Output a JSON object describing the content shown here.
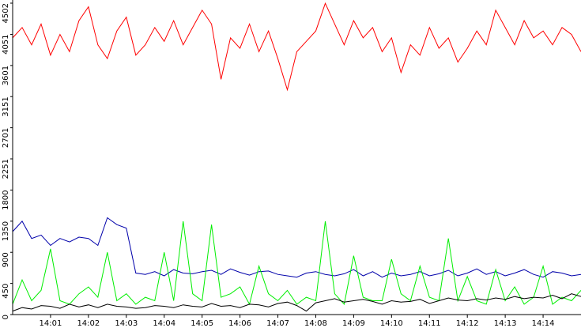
{
  "chart_data": {
    "type": "line",
    "x": [
      0,
      0.25,
      0.5,
      0.75,
      1,
      1.25,
      1.5,
      1.75,
      2,
      2.25,
      2.5,
      2.75,
      3,
      3.25,
      3.5,
      3.75,
      4,
      4.25,
      4.5,
      4.75,
      5,
      5.25,
      5.5,
      5.75,
      6,
      6.25,
      6.5,
      6.75,
      7,
      7.25,
      7.5,
      7.75,
      8,
      8.25,
      8.5,
      8.75,
      9,
      9.25,
      9.5,
      9.75,
      10,
      10.25,
      10.5,
      10.75,
      11,
      11.25,
      11.5,
      11.75,
      12,
      12.25,
      12.5,
      12.75,
      13,
      13.25,
      13.5,
      13.75,
      14,
      14.25,
      14.5,
      14.75,
      15
    ],
    "series": [
      {
        "color": "#ff0000",
        "values": [
          4000,
          4150,
          3900,
          4200,
          3750,
          4050,
          3800,
          4250,
          4450,
          3900,
          3700,
          4100,
          4300,
          3750,
          3900,
          4150,
          3950,
          4250,
          3900,
          4150,
          4400,
          4200,
          3400,
          4000,
          3850,
          4200,
          3800,
          4100,
          3700,
          3250,
          3800,
          3950,
          4100,
          4500,
          4200,
          3900,
          4250,
          4000,
          4150,
          3800,
          4000,
          3500,
          3900,
          3750,
          4150,
          3850,
          4000,
          3650,
          3850,
          4100,
          3900,
          4400,
          4150,
          3900,
          4250,
          4000,
          4100,
          3900,
          4150,
          4050,
          3800
        ]
      },
      {
        "color": "#0000aa",
        "values": [
          1200,
          1350,
          1100,
          1150,
          1000,
          1100,
          1050,
          1120,
          1100,
          1000,
          1400,
          1300,
          1250,
          600,
          580,
          620,
          560,
          650,
          600,
          590,
          620,
          640,
          580,
          660,
          610,
          570,
          620,
          630,
          580,
          560,
          540,
          600,
          620,
          580,
          560,
          590,
          650,
          560,
          620,
          540,
          600,
          560,
          580,
          620,
          560,
          590,
          640,
          560,
          600,
          660,
          580,
          620,
          560,
          600,
          650,
          580,
          540,
          620,
          600,
          560,
          580
        ]
      },
      {
        "color": "#00ee00",
        "values": [
          150,
          500,
          200,
          350,
          950,
          200,
          150,
          300,
          400,
          250,
          900,
          200,
          300,
          150,
          250,
          200,
          900,
          200,
          1350,
          300,
          200,
          1300,
          250,
          300,
          400,
          150,
          700,
          300,
          200,
          350,
          150,
          250,
          200,
          1350,
          300,
          150,
          850,
          250,
          200,
          200,
          800,
          300,
          200,
          700,
          250,
          200,
          1100,
          200,
          550,
          200,
          150,
          650,
          200,
          400,
          150,
          250,
          700,
          150,
          250,
          200,
          350
        ]
      },
      {
        "color": "#000000",
        "values": [
          50,
          100,
          80,
          130,
          120,
          90,
          150,
          110,
          140,
          100,
          150,
          120,
          110,
          90,
          100,
          130,
          120,
          100,
          140,
          120,
          110,
          160,
          120,
          130,
          100,
          150,
          140,
          110,
          160,
          180,
          130,
          50,
          170,
          200,
          230,
          180,
          200,
          220,
          190,
          150,
          200,
          180,
          190,
          220,
          160,
          200,
          240,
          210,
          200,
          230,
          210,
          240,
          220,
          260,
          230,
          250,
          240,
          280,
          230,
          300,
          260
        ]
      }
    ],
    "xlim": [
      0,
      15
    ],
    "xticks": [
      {
        "value": 1,
        "label": "14:01"
      },
      {
        "value": 2,
        "label": "14:02"
      },
      {
        "value": 3,
        "label": "14:03"
      },
      {
        "value": 4,
        "label": "14:04"
      },
      {
        "value": 5,
        "label": "14:05"
      },
      {
        "value": 6,
        "label": "14:06"
      },
      {
        "value": 7,
        "label": "14:07"
      },
      {
        "value": 8,
        "label": "14:08"
      },
      {
        "value": 9,
        "label": "14:09"
      },
      {
        "value": 10,
        "label": "14:10"
      },
      {
        "value": 11,
        "label": "14:11"
      },
      {
        "value": 12,
        "label": "14:12"
      },
      {
        "value": 13,
        "label": "14:13"
      },
      {
        "value": 14,
        "label": "14:14"
      }
    ],
    "ylim": [
      0,
      4502
    ],
    "yticks": [
      0,
      450,
      900,
      1350,
      1800,
      2251,
      2701,
      3151,
      3601,
      4051,
      4502
    ]
  }
}
